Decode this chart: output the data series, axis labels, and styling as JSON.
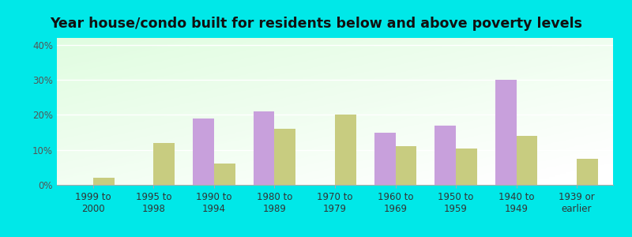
{
  "title": "Year house/condo built for residents below and above poverty levels",
  "categories": [
    "1999 to\n2000",
    "1995 to\n1998",
    "1990 to\n1994",
    "1980 to\n1989",
    "1970 to\n1979",
    "1960 to\n1969",
    "1950 to\n1959",
    "1940 to\n1949",
    "1939 or\nearlier"
  ],
  "below_poverty": [
    0,
    0,
    19,
    21,
    0,
    15,
    17,
    30,
    0
  ],
  "above_poverty": [
    2,
    12,
    6,
    16,
    20,
    11,
    10.5,
    14,
    7.5
  ],
  "below_color": "#c8a0dc",
  "above_color": "#c8cc80",
  "ylim": [
    0,
    42
  ],
  "yticks": [
    0,
    10,
    20,
    30,
    40
  ],
  "ytick_labels": [
    "0%",
    "10%",
    "20%",
    "30%",
    "40%"
  ],
  "outer_bg": "#00e8e8",
  "bar_width": 0.35,
  "title_fontsize": 12.5,
  "tick_fontsize": 8.5
}
